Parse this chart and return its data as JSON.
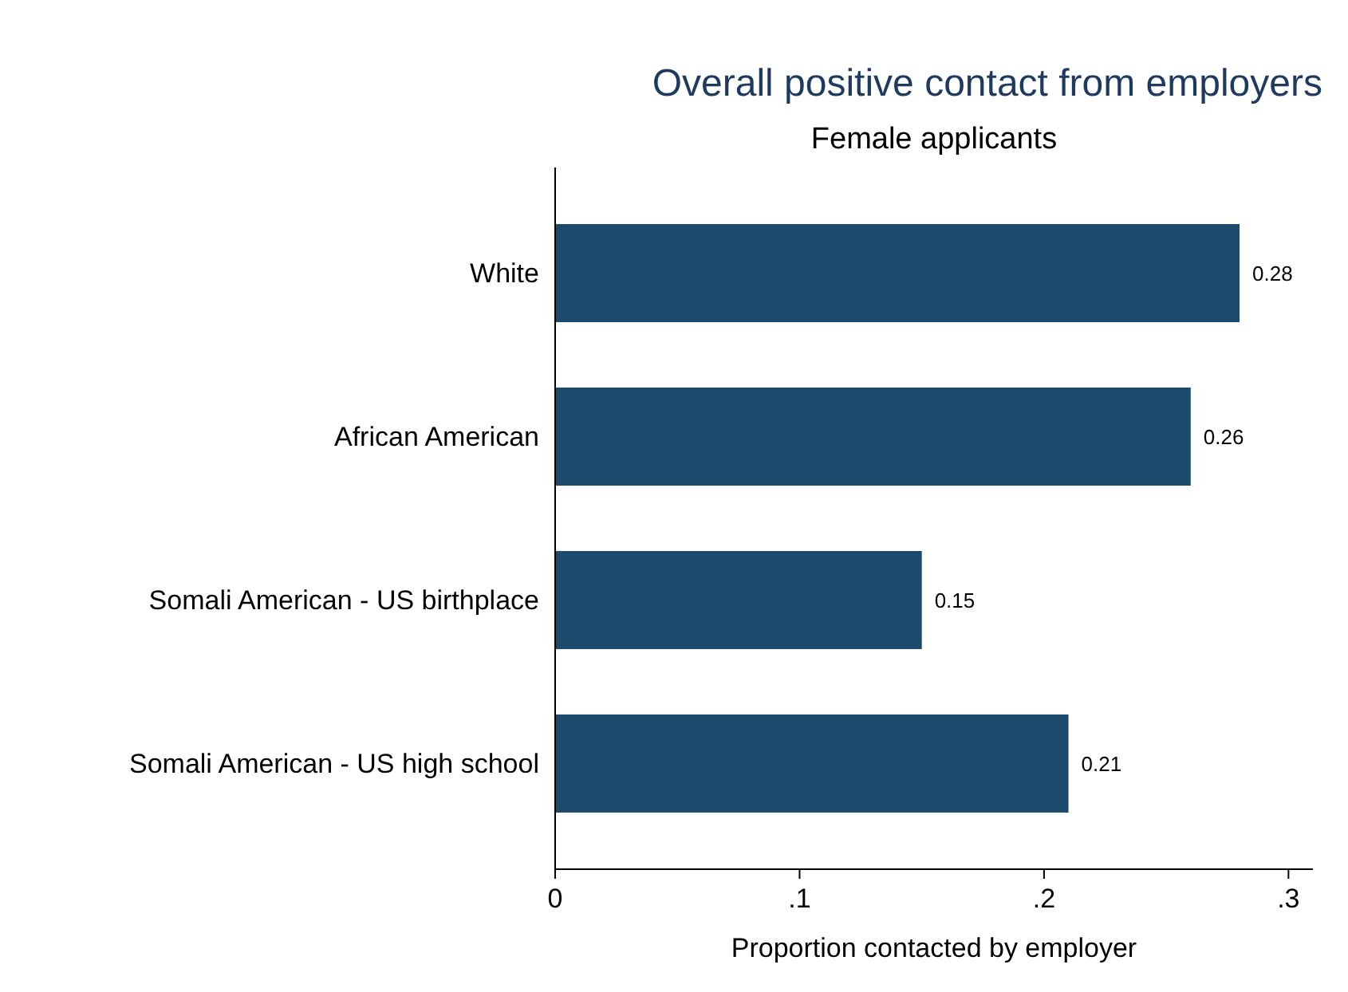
{
  "chart_data": {
    "type": "bar",
    "orientation": "horizontal",
    "title": "Overall positive contact from employers",
    "subtitle": "Female applicants",
    "xlabel": "Proportion contacted by employer",
    "categories": [
      "White",
      "African American",
      "Somali American -  US birthplace",
      "Somali American - US high school"
    ],
    "values": [
      0.28,
      0.26,
      0.15,
      0.21
    ],
    "color": "#1b4a6d",
    "data_labels": true,
    "grid": false,
    "xlim": [
      0,
      0.31
    ],
    "xticks": [
      0,
      {
        "value": 0.1,
        "label": ".1"
      },
      {
        "value": 0.2,
        "label": ".2"
      },
      {
        "value": 0.3,
        "label": ".3"
      }
    ]
  }
}
